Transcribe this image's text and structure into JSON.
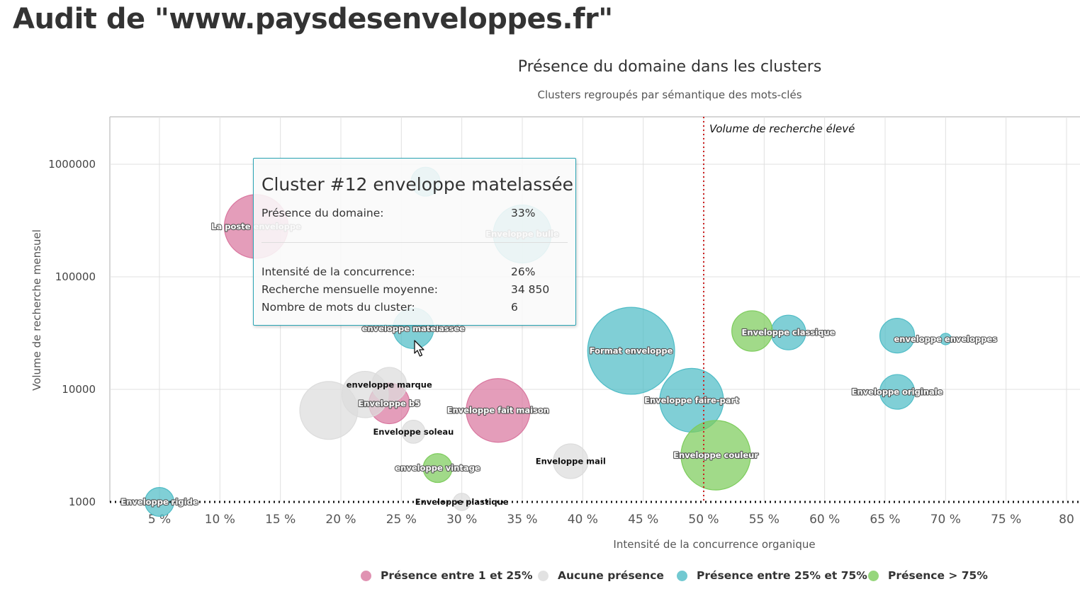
{
  "page": {
    "title": "Audit de \"www.paysdesenveloppes.fr\""
  },
  "colors": {
    "pink": "#d9779f",
    "gray": "#dcdcdc",
    "teal": "#4fbcc6",
    "green": "#7dcc5c"
  },
  "chart_data": {
    "type": "scatter",
    "subtype": "bubble",
    "title": "Présence du domaine dans les clusters",
    "subtitle": "Clusters regroupés par sémantique des mots-clés",
    "xlabel": "Intensité de la concurrence organique",
    "ylabel": "Volume de recherche mensuel",
    "xlim": [
      1,
      81
    ],
    "ylim": [
      1000,
      2600000
    ],
    "y_scale": "log",
    "grid": true,
    "x_ticks": [
      "5 %",
      "10 %",
      "15 %",
      "20 %",
      "25 %",
      "30 %",
      "35 %",
      "40 %",
      "45 %",
      "50 %",
      "55 %",
      "60 %",
      "65 %",
      "70 %",
      "75 %",
      "80"
    ],
    "x_tick_values": [
      5,
      10,
      15,
      20,
      25,
      30,
      35,
      40,
      45,
      50,
      55,
      60,
      65,
      70,
      75,
      80
    ],
    "y_ticks": [
      "1000",
      "10000",
      "100000",
      "1000000"
    ],
    "y_tick_values": [
      1000,
      10000,
      100000,
      1000000
    ],
    "plot_lines": [
      {
        "axis": "x",
        "value": 50,
        "style": "dotted",
        "color": "#cc2222",
        "label": "Volume de recherche élevé"
      },
      {
        "axis": "y",
        "value": 1000,
        "style": "dotted",
        "color": "#111111",
        "label": ""
      }
    ],
    "legend": {
      "position": "bottom",
      "items": [
        {
          "name": "Présence entre 1 et 25%",
          "color": "pink"
        },
        {
          "name": "Aucune présence",
          "color": "gray"
        },
        {
          "name": "Présence entre 25% et 75%",
          "color": "teal"
        },
        {
          "name": "Présence > 75%",
          "color": "green"
        }
      ]
    },
    "series": [
      {
        "name": "Présence entre 1 et 25%",
        "color": "pink",
        "points": [
          {
            "x": 13,
            "y": 280000,
            "size": 10,
            "label": "La poste enveloppe"
          },
          {
            "x": 24,
            "y": 7500,
            "size": 6,
            "label": "Enveloppe b5"
          },
          {
            "x": 33,
            "y": 6500,
            "size": 10,
            "label": "Enveloppe fait maison"
          }
        ]
      },
      {
        "name": "Aucune présence",
        "color": "gray",
        "points": [
          {
            "x": 19,
            "y": 6500,
            "size": 9,
            "label": ""
          },
          {
            "x": 22,
            "y": 9000,
            "size": 7,
            "label": ""
          },
          {
            "x": 24,
            "y": 11000,
            "size": 5,
            "label": "enveloppe marque"
          },
          {
            "x": 26,
            "y": 4200,
            "size": 3,
            "label": "Enveloppe soleau"
          },
          {
            "x": 39,
            "y": 2300,
            "size": 5,
            "label": "Enveloppe mail"
          },
          {
            "x": 30,
            "y": 1000,
            "size": 2,
            "label": "Enveloppe plastique"
          }
        ]
      },
      {
        "name": "Présence entre 25% et 75%",
        "color": "teal",
        "points": [
          {
            "x": 27,
            "y": 700000,
            "size": 4,
            "label": ""
          },
          {
            "x": 35,
            "y": 240000,
            "size": 9,
            "label": "Enveloppe bulle"
          },
          {
            "x": 26,
            "y": 34850,
            "size": 6,
            "label": "enveloppe matelassée"
          },
          {
            "x": 44,
            "y": 22000,
            "size": 14,
            "label": "Format enveloppe"
          },
          {
            "x": 49,
            "y": 8000,
            "size": 10,
            "label": "Enveloppe faire-part"
          },
          {
            "x": 57,
            "y": 32000,
            "size": 5,
            "label": "Enveloppe classique"
          },
          {
            "x": 66,
            "y": 30000,
            "size": 5,
            "label": ""
          },
          {
            "x": 70,
            "y": 28000,
            "size": 1,
            "label": "enveloppe enveloppes"
          },
          {
            "x": 66,
            "y": 9500,
            "size": 5,
            "label": "Enveloppe originale"
          },
          {
            "x": 5,
            "y": 1000,
            "size": 4,
            "label": "Enveloppe rigide"
          }
        ]
      },
      {
        "name": "Présence > 75%",
        "color": "green",
        "points": [
          {
            "x": 54,
            "y": 33000,
            "size": 6,
            "label": ""
          },
          {
            "x": 51,
            "y": 2600,
            "size": 11,
            "label": "Enveloppe couleur"
          },
          {
            "x": 28,
            "y": 2000,
            "size": 4,
            "label": "enveloppe vintage"
          }
        ]
      }
    ]
  },
  "tooltip": {
    "title": "Cluster #12 enveloppe matelassée",
    "rows": [
      {
        "label": "Présence du domaine:",
        "value": "33%"
      },
      {
        "label": "Intensité de la concurrence:",
        "value": "26%"
      },
      {
        "label": "Recherche mensuelle moyenne:",
        "value": "34 850"
      },
      {
        "label": "Nombre de mots du cluster:",
        "value": "6"
      }
    ]
  }
}
